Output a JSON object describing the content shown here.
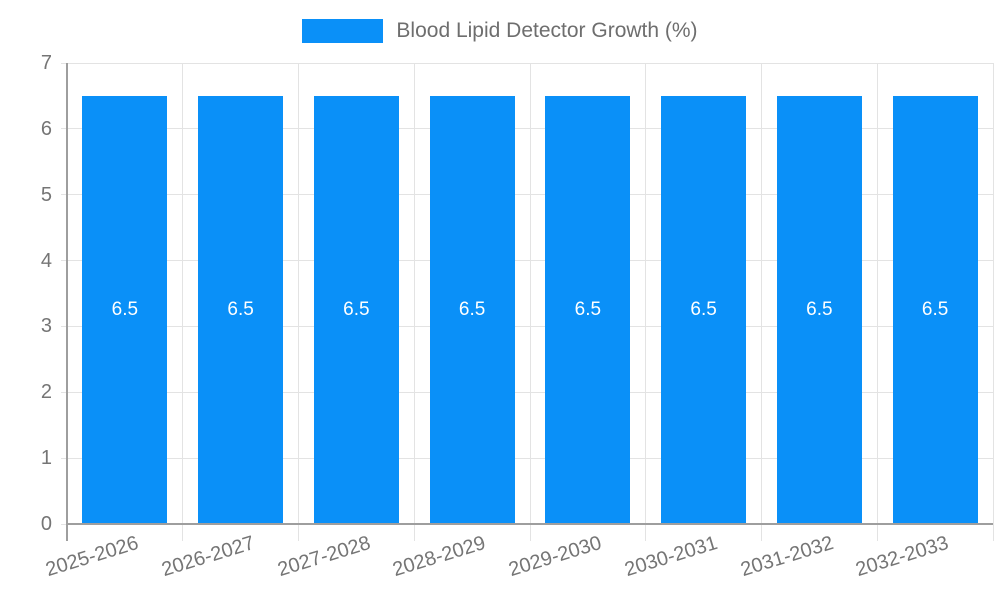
{
  "chart_data": {
    "type": "bar",
    "title": "Blood Lipid Detector Growth (%)",
    "categories": [
      "2025-2026",
      "2026-2027",
      "2027-2028",
      "2028-2029",
      "2029-2030",
      "2030-2031",
      "2031-2032",
      "2032-2033"
    ],
    "series": [
      {
        "name": "Blood Lipid Detector Growth (%)",
        "values": [
          6.5,
          6.5,
          6.5,
          6.5,
          6.5,
          6.5,
          6.5,
          6.5
        ]
      }
    ],
    "value_labels": [
      "6.5",
      "6.5",
      "6.5",
      "6.5",
      "6.5",
      "6.5",
      "6.5",
      "6.5"
    ],
    "xlabel": "",
    "ylabel": "",
    "ylim": [
      0,
      7
    ],
    "yticks": [
      "0",
      "1",
      "2",
      "3",
      "4",
      "5",
      "6",
      "7"
    ],
    "grid": "on",
    "legend_position": "top-center",
    "colors": {
      "bar": "#0a90f8",
      "axis": "#9e9e9e",
      "gridline": "#e3e3e3",
      "tick_text": "#757575",
      "legend_text": "#6e6e6e",
      "value_text": "#ffffff",
      "background": "#ffffff"
    }
  }
}
